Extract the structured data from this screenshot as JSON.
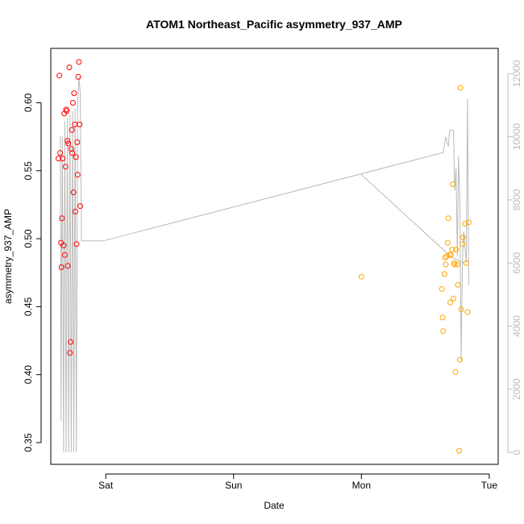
{
  "chart_data": {
    "type": "scatter",
    "title": "ATOM1 Northeast_Pacific asymmetry_937_AMP",
    "xlabel": "Date",
    "ylabel": "asymmetry_937_AMP",
    "x_unit": "days since Sat 00:00",
    "xlim": [
      -0.43,
      3.07
    ],
    "ylim": [
      0.334,
      0.64
    ],
    "x_ticks": [
      {
        "label": "Sat",
        "value": 0
      },
      {
        "label": "Sun",
        "value": 1
      },
      {
        "label": "Mon",
        "value": 2
      },
      {
        "label": "Tue",
        "value": 3
      }
    ],
    "y_ticks": [
      0.35,
      0.4,
      0.45,
      0.5,
      0.55,
      0.6
    ],
    "y2_ticks": [
      0,
      2000,
      4000,
      6000,
      8000,
      10000,
      12000
    ],
    "y2lim": [
      -380,
      12800
    ],
    "series": [
      {
        "name": "",
        "color": "#ff0000",
        "points": [
          [
            -0.37,
            0.559
          ],
          [
            -0.363,
            0.62
          ],
          [
            -0.357,
            0.563
          ],
          [
            -0.35,
            0.497
          ],
          [
            -0.347,
            0.479
          ],
          [
            -0.343,
            0.515
          ],
          [
            -0.337,
            0.559
          ],
          [
            -0.33,
            0.495
          ],
          [
            -0.325,
            0.592
          ],
          [
            -0.32,
            0.488
          ],
          [
            -0.315,
            0.553
          ],
          [
            -0.31,
            0.595
          ],
          [
            -0.305,
            0.594
          ],
          [
            -0.3,
            0.572
          ],
          [
            -0.297,
            0.48
          ],
          [
            -0.293,
            0.57
          ],
          [
            -0.285,
            0.626
          ],
          [
            -0.28,
            0.416
          ],
          [
            -0.275,
            0.424
          ],
          [
            -0.27,
            0.566
          ],
          [
            -0.265,
            0.58
          ],
          [
            -0.262,
            0.563
          ],
          [
            -0.257,
            0.6
          ],
          [
            -0.252,
            0.534
          ],
          [
            -0.248,
            0.607
          ],
          [
            -0.243,
            0.584
          ],
          [
            -0.238,
            0.52
          ],
          [
            -0.233,
            0.56
          ],
          [
            -0.228,
            0.496
          ],
          [
            -0.223,
            0.571
          ],
          [
            -0.22,
            0.547
          ],
          [
            -0.215,
            0.619
          ],
          [
            -0.21,
            0.63
          ],
          [
            -0.205,
            0.584
          ],
          [
            -0.2,
            0.524
          ]
        ]
      },
      {
        "name": "",
        "color": "#ffa500",
        "points": [
          [
            2.0,
            0.472
          ],
          [
            2.63,
            0.463
          ],
          [
            2.635,
            0.442
          ],
          [
            2.64,
            0.432
          ],
          [
            2.65,
            0.474
          ],
          [
            2.655,
            0.486
          ],
          [
            2.66,
            0.481
          ],
          [
            2.665,
            0.487
          ],
          [
            2.675,
            0.497
          ],
          [
            2.68,
            0.515
          ],
          [
            2.69,
            0.488
          ],
          [
            2.695,
            0.453
          ],
          [
            2.7,
            0.488
          ],
          [
            2.71,
            0.492
          ],
          [
            2.715,
            0.54
          ],
          [
            2.72,
            0.456
          ],
          [
            2.725,
            0.482
          ],
          [
            2.73,
            0.481
          ],
          [
            2.735,
            0.402
          ],
          [
            2.74,
            0.492
          ],
          [
            2.75,
            0.481
          ],
          [
            2.755,
            0.466
          ],
          [
            2.765,
            0.344
          ],
          [
            2.77,
            0.411
          ],
          [
            2.775,
            0.611
          ],
          [
            2.78,
            0.448
          ],
          [
            2.79,
            0.496
          ],
          [
            2.795,
            0.501
          ],
          [
            2.81,
            0.511
          ],
          [
            2.82,
            0.482
          ],
          [
            2.83,
            0.446
          ],
          [
            2.84,
            0.512
          ]
        ]
      }
    ],
    "secondary_line": {
      "color": "#bbbbbb",
      "axis": "right",
      "segments": [
        [
          [
            -0.36,
            10000
          ],
          [
            -0.355,
            10000
          ],
          [
            -0.35,
            1000
          ],
          [
            -0.34,
            10000
          ],
          [
            -0.33,
            0
          ],
          [
            -0.32,
            10500
          ],
          [
            -0.31,
            0
          ],
          [
            -0.3,
            10600
          ],
          [
            -0.29,
            0
          ],
          [
            -0.28,
            10700
          ],
          [
            -0.27,
            0
          ],
          [
            -0.26,
            10800
          ],
          [
            -0.25,
            0
          ],
          [
            -0.24,
            10900
          ],
          [
            -0.23,
            0
          ],
          [
            -0.22,
            11000
          ],
          [
            -0.21,
            11900
          ],
          [
            -0.2,
            11400
          ],
          [
            -0.19,
            6700
          ],
          [
            -0.02,
            6700
          ],
          [
            2.64,
            9500
          ],
          [
            2.66,
            10000
          ],
          [
            2.67,
            9800
          ],
          [
            2.68,
            9700
          ],
          [
            2.69,
            10200
          ],
          [
            2.72,
            10200
          ],
          [
            2.73,
            8300
          ],
          [
            2.74,
            9000
          ],
          [
            2.75,
            6200
          ],
          [
            2.76,
            9400
          ],
          [
            2.77,
            8000
          ],
          [
            2.78,
            2900
          ],
          [
            2.79,
            6000
          ],
          [
            2.8,
            7000
          ],
          [
            2.81,
            6500
          ],
          [
            2.82,
            6000
          ],
          [
            2.83,
            11200
          ],
          [
            2.84,
            5300
          ]
        ],
        [
          [
            2.0,
            8800
          ],
          [
            2.7,
            6200
          ],
          [
            2.8,
            6000
          ]
        ]
      ]
    },
    "grid": false,
    "legend": "none"
  }
}
